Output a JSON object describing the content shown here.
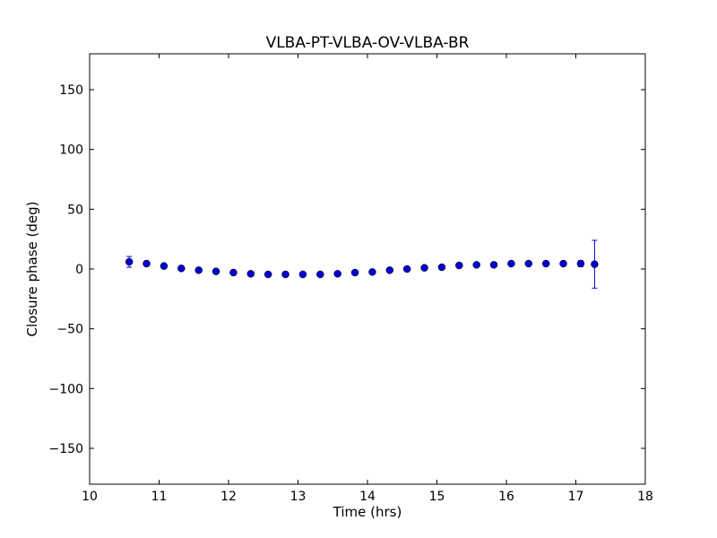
{
  "chart_data": {
    "type": "scatter",
    "title": "VLBA-PT-VLBA-OV-VLBA-BR",
    "xlabel": "Time (hrs)",
    "ylabel": "Closure phase (deg)",
    "xlim": [
      10,
      18
    ],
    "ylim": [
      -180,
      180
    ],
    "xticks": [
      10,
      11,
      12,
      13,
      14,
      15,
      16,
      17,
      18
    ],
    "yticks": [
      -150,
      -100,
      -50,
      0,
      50,
      100,
      150
    ],
    "xtick_labels": [
      "10",
      "11",
      "12",
      "13",
      "14",
      "15",
      "16",
      "17",
      "18"
    ],
    "ytick_labels": [
      "−150",
      "−100",
      "−50",
      "0",
      "50",
      "100",
      "150"
    ],
    "grid": false,
    "legend": "none",
    "marker_color": "#0000cc",
    "points": [
      {
        "x": 10.57,
        "y": 6.0,
        "yerr": 4.5
      },
      {
        "x": 10.82,
        "y": 4.5,
        "yerr": 1.0
      },
      {
        "x": 11.07,
        "y": 2.5,
        "yerr": 1.0
      },
      {
        "x": 11.32,
        "y": 0.5,
        "yerr": 1.0
      },
      {
        "x": 11.57,
        "y": -1.0,
        "yerr": 1.0
      },
      {
        "x": 11.82,
        "y": -2.0,
        "yerr": 1.0
      },
      {
        "x": 12.07,
        "y": -3.0,
        "yerr": 1.0
      },
      {
        "x": 12.32,
        "y": -4.0,
        "yerr": 1.0
      },
      {
        "x": 12.57,
        "y": -4.5,
        "yerr": 1.0
      },
      {
        "x": 12.82,
        "y": -4.5,
        "yerr": 1.0
      },
      {
        "x": 13.07,
        "y": -4.5,
        "yerr": 1.0
      },
      {
        "x": 13.32,
        "y": -4.5,
        "yerr": 1.0
      },
      {
        "x": 13.57,
        "y": -4.0,
        "yerr": 1.0
      },
      {
        "x": 13.82,
        "y": -3.0,
        "yerr": 1.0
      },
      {
        "x": 14.07,
        "y": -2.5,
        "yerr": 1.0
      },
      {
        "x": 14.32,
        "y": -1.0,
        "yerr": 1.0
      },
      {
        "x": 14.57,
        "y": 0.0,
        "yerr": 1.0
      },
      {
        "x": 14.82,
        "y": 1.0,
        "yerr": 1.0
      },
      {
        "x": 15.07,
        "y": 1.5,
        "yerr": 1.0
      },
      {
        "x": 15.32,
        "y": 3.0,
        "yerr": 1.0
      },
      {
        "x": 15.57,
        "y": 3.5,
        "yerr": 1.0
      },
      {
        "x": 15.82,
        "y": 3.5,
        "yerr": 1.0
      },
      {
        "x": 16.07,
        "y": 4.5,
        "yerr": 1.0
      },
      {
        "x": 16.32,
        "y": 4.5,
        "yerr": 1.0
      },
      {
        "x": 16.57,
        "y": 4.5,
        "yerr": 1.0
      },
      {
        "x": 16.82,
        "y": 4.5,
        "yerr": 1.0
      },
      {
        "x": 17.07,
        "y": 4.5,
        "yerr": 2.5
      },
      {
        "x": 17.27,
        "y": 4.0,
        "yerr": 20.0
      }
    ]
  }
}
